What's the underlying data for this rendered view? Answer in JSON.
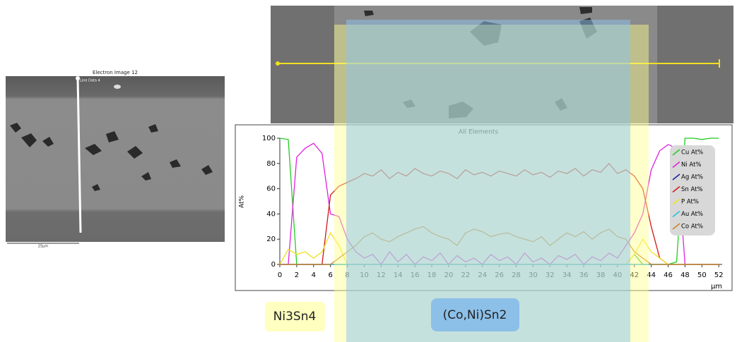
{
  "sem_image": {
    "title": "Electron Image 12",
    "line_label": "Line Data 4",
    "scale": "25µm"
  },
  "annotations": [
    "Ni3Sn4",
    "(Co,Ni)Sn2"
  ],
  "chart_data": {
    "type": "line",
    "title": "All Elements",
    "y_label": "At%",
    "x_label": "µm",
    "xlim": [
      0,
      52.4
    ],
    "ylim": [
      0,
      100
    ],
    "xticks": [
      0,
      2,
      4,
      6,
      8,
      10,
      12,
      14,
      16,
      18,
      20,
      22,
      24,
      26,
      28,
      30,
      32,
      34,
      36,
      38,
      40,
      42,
      44,
      46,
      48,
      50,
      52
    ],
    "yticks": [
      0,
      20,
      40,
      60,
      80,
      100
    ],
    "x": [
      0,
      1,
      2,
      3,
      4,
      5,
      6,
      7,
      8,
      9,
      10,
      11,
      12,
      13,
      14,
      15,
      16,
      17,
      18,
      19,
      20,
      21,
      22,
      23,
      24,
      25,
      26,
      27,
      28,
      29,
      30,
      31,
      32,
      33,
      34,
      35,
      36,
      37,
      38,
      39,
      40,
      41,
      42,
      43,
      44,
      45,
      46,
      47,
      48,
      49,
      50,
      51,
      52
    ],
    "series": [
      {
        "name": "Cu At%",
        "color": "#22cc22",
        "values": [
          100,
          99,
          0,
          0,
          0,
          0,
          0,
          0,
          0,
          0,
          0,
          0,
          0,
          0,
          0,
          0,
          0,
          0,
          0,
          0,
          0,
          0,
          0,
          0,
          0,
          0,
          0,
          0,
          0,
          0,
          0,
          0,
          0,
          0,
          0,
          0,
          0,
          0,
          0,
          0,
          0,
          0,
          8,
          0,
          0,
          0,
          0,
          2,
          100,
          100,
          99,
          100,
          100
        ]
      },
      {
        "name": "Ni At%",
        "color": "#e020e0",
        "values": [
          0,
          0,
          85,
          92,
          96,
          88,
          40,
          38,
          20,
          10,
          5,
          8,
          0,
          10,
          2,
          8,
          0,
          6,
          3,
          9,
          0,
          7,
          2,
          5,
          0,
          8,
          3,
          6,
          0,
          9,
          2,
          5,
          0,
          7,
          4,
          8,
          0,
          6,
          3,
          9,
          5,
          15,
          25,
          40,
          75,
          90,
          95,
          92,
          0,
          0,
          0,
          0,
          0
        ]
      },
      {
        "name": "Ag At%",
        "color": "#1a1aa0",
        "values": [
          0,
          0,
          0,
          0,
          0,
          0,
          0,
          0,
          0,
          0,
          0,
          0,
          0,
          0,
          0,
          0,
          0,
          0,
          0,
          0,
          0,
          0,
          0,
          0,
          0,
          0,
          0,
          0,
          0,
          0,
          0,
          0,
          0,
          0,
          0,
          0,
          0,
          0,
          0,
          0,
          0,
          0,
          0,
          0,
          0,
          0,
          0,
          0,
          0,
          0,
          0,
          0,
          0
        ]
      },
      {
        "name": "Sn At%",
        "color": "#d01818",
        "values": [
          0,
          0,
          0,
          0,
          0,
          0,
          55,
          62,
          65,
          68,
          72,
          70,
          75,
          68,
          73,
          70,
          76,
          72,
          70,
          74,
          72,
          68,
          75,
          71,
          73,
          70,
          74,
          72,
          70,
          75,
          71,
          73,
          69,
          74,
          72,
          76,
          70,
          75,
          73,
          80,
          72,
          75,
          70,
          60,
          30,
          5,
          0,
          0,
          0,
          0,
          0,
          0,
          0
        ]
      },
      {
        "name": "P At%",
        "color": "#f0e020",
        "values": [
          0,
          12,
          8,
          10,
          5,
          10,
          25,
          15,
          0,
          0,
          0,
          0,
          0,
          0,
          0,
          0,
          0,
          0,
          0,
          0,
          0,
          0,
          0,
          0,
          0,
          0,
          0,
          0,
          0,
          0,
          0,
          0,
          0,
          0,
          0,
          0,
          0,
          0,
          0,
          0,
          0,
          0,
          8,
          20,
          10,
          5,
          0,
          0,
          0,
          0,
          0,
          0,
          0
        ]
      },
      {
        "name": "Au At%",
        "color": "#20c0e0",
        "values": [
          0,
          0,
          0,
          0,
          0,
          0,
          0,
          0,
          0,
          0,
          0,
          0,
          0,
          0,
          0,
          0,
          0,
          0,
          0,
          0,
          0,
          0,
          0,
          0,
          0,
          0,
          0,
          0,
          0,
          0,
          0,
          0,
          0,
          0,
          0,
          0,
          0,
          0,
          0,
          0,
          0,
          0,
          0,
          0,
          0,
          0,
          0,
          0,
          0,
          0,
          0,
          0,
          0
        ]
      },
      {
        "name": "Co At%",
        "color": "#d08020",
        "values": [
          0,
          0,
          0,
          0,
          0,
          0,
          0,
          5,
          10,
          15,
          22,
          25,
          20,
          18,
          22,
          25,
          28,
          30,
          25,
          22,
          20,
          15,
          25,
          28,
          26,
          22,
          24,
          25,
          22,
          20,
          18,
          22,
          15,
          20,
          25,
          22,
          26,
          20,
          25,
          28,
          22,
          20,
          10,
          5,
          0,
          0,
          0,
          0,
          0,
          0,
          0,
          0,
          0
        ]
      }
    ]
  }
}
